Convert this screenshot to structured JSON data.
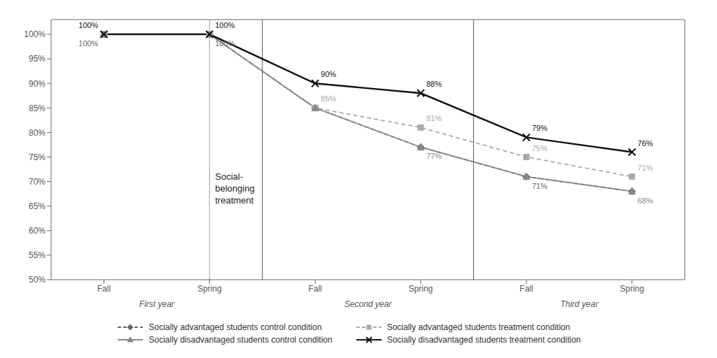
{
  "chart_data": {
    "type": "line",
    "categories": [
      "Fall",
      "Spring",
      "Fall",
      "Spring",
      "Fall",
      "Spring"
    ],
    "x_group_labels": [
      "First year",
      "Second year",
      "Third year"
    ],
    "series": [
      {
        "name": "Socially advantaged students control condition",
        "values": [
          100,
          100,
          85,
          77,
          71,
          68
        ],
        "value_labels": [
          "100%",
          "100%",
          null,
          null,
          "71%",
          null
        ],
        "color": "#666666",
        "line_style": "dashed",
        "marker": "diamond"
      },
      {
        "name": "Socially advantaged students treatment condition",
        "values": [
          100,
          100,
          85,
          81,
          75,
          71
        ],
        "value_labels": [
          null,
          null,
          "85%",
          "81%",
          "75%",
          "71%"
        ],
        "color": "#aaaaaa",
        "line_style": "dashed",
        "marker": "square"
      },
      {
        "name": "Socially disadvantaged students control condition",
        "values": [
          100,
          100,
          85,
          77,
          71,
          68
        ],
        "value_labels": [
          null,
          null,
          null,
          "77%",
          null,
          "68%"
        ],
        "color": "#888888",
        "line_style": "solid",
        "marker": "triangle"
      },
      {
        "name": "Socially disadvantaged students treatment condition",
        "values": [
          100,
          100,
          90,
          88,
          79,
          76
        ],
        "value_labels": [
          "100%",
          "100%",
          "90%",
          "88%",
          "79%",
          "76%"
        ],
        "color": "#111111",
        "line_style": "solid",
        "marker": "x"
      }
    ],
    "ylim": [
      50,
      103
    ],
    "yticks": [
      {
        "value": 50,
        "label": "50%"
      },
      {
        "value": 55,
        "label": "55%"
      },
      {
        "value": 60,
        "label": "60%"
      },
      {
        "value": 65,
        "label": "65%"
      },
      {
        "value": 70,
        "label": "70%"
      },
      {
        "value": 75,
        "label": "75%"
      },
      {
        "value": 80,
        "label": "80%"
      },
      {
        "value": 85,
        "label": "85%"
      },
      {
        "value": 90,
        "label": "90%"
      },
      {
        "value": 95,
        "label": "95%"
      },
      {
        "value": 100,
        "label": "100%"
      }
    ],
    "annotations": [
      {
        "text": "Social-\nbelonging\ntreatment",
        "x": 1,
        "y": 72
      }
    ],
    "data_labels": true,
    "grid": false,
    "legend": "bottom"
  }
}
